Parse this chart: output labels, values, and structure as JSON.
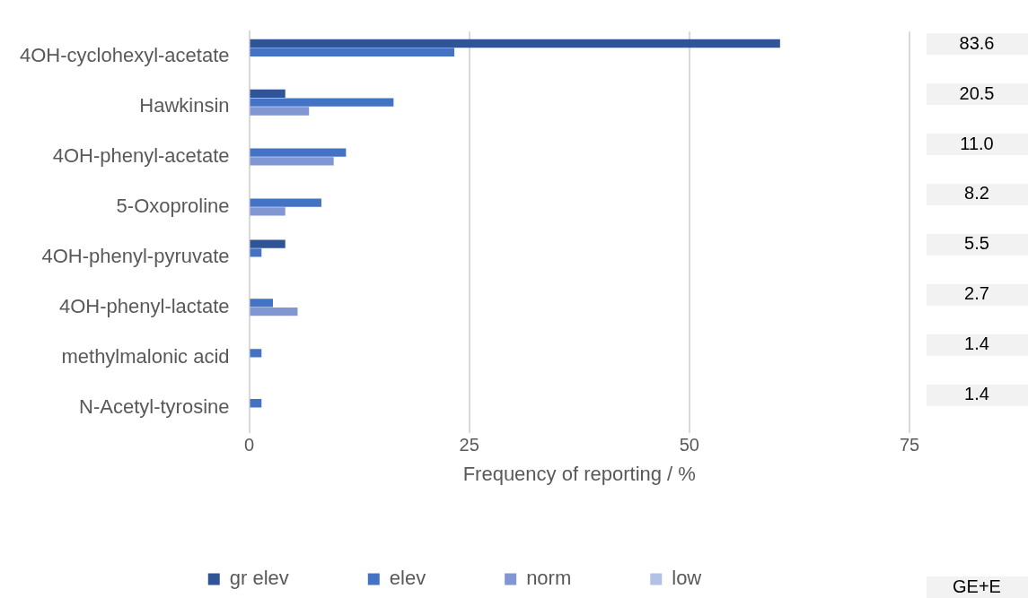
{
  "chart_data": {
    "type": "bar",
    "orientation": "horizontal",
    "xlabel": "Frequency of reporting / %",
    "categories": [
      "4OH-cyclohexyl-acetate",
      "Hawkinsin",
      "4OH-phenyl-acetate",
      "5-Oxoproline",
      "4OH-phenyl-pyruvate",
      "4OH-phenyl-lactate",
      "methylmalonic acid",
      "N-Acetyl-tyrosine"
    ],
    "series": [
      {
        "name": "gr elev",
        "color": "#2f5597",
        "values": [
          60.3,
          4.1,
          null,
          null,
          4.1,
          null,
          null,
          null
        ]
      },
      {
        "name": "elev",
        "color": "#4472c4",
        "values": [
          23.3,
          16.4,
          11.0,
          8.2,
          1.4,
          2.7,
          1.4,
          1.4
        ]
      },
      {
        "name": "norm",
        "color": "#8097d4",
        "values": [
          null,
          6.8,
          9.6,
          4.1,
          null,
          5.5,
          null,
          null
        ]
      },
      {
        "name": "low",
        "color": "#b4c1e6",
        "values": [
          null,
          null,
          null,
          null,
          null,
          null,
          null,
          null
        ]
      }
    ],
    "annotations": [
      "83.6",
      "20.5",
      "11.0",
      "8.2",
      "5.5",
      "2.7",
      "1.4",
      "1.4",
      "GE+E"
    ],
    "xlim": [
      0,
      75
    ],
    "xticks": [
      0,
      25,
      50,
      75
    ],
    "grid": "x",
    "legend": "bottom"
  }
}
